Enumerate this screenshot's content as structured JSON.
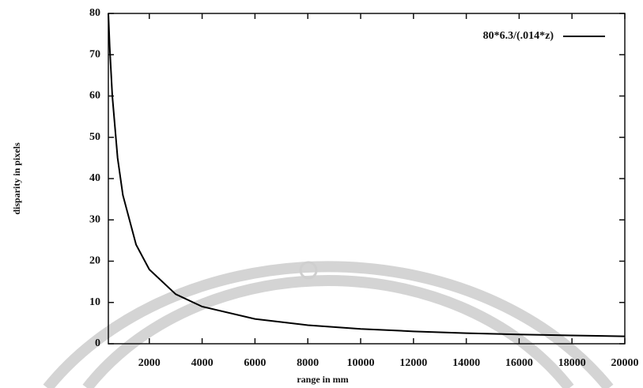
{
  "chart_data": {
    "type": "line",
    "x_label": "range in mm",
    "y_label": "disparity in pixels",
    "x": [
      450,
      500,
      600,
      800,
      1000,
      1500,
      2000,
      3000,
      4000,
      6000,
      8000,
      10000,
      12000,
      14000,
      16000,
      18000,
      20000
    ],
    "series": [
      {
        "name": "80*6.3/(.014*z)",
        "color": "#000000",
        "values": [
          80,
          72,
          60,
          45,
          36,
          24,
          18,
          12,
          9,
          6,
          4.5,
          3.6,
          3,
          2.57,
          2.25,
          2,
          1.8
        ]
      }
    ],
    "xlim": [
      450,
      20000
    ],
    "xticks": [
      2000,
      4000,
      6000,
      8000,
      10000,
      12000,
      14000,
      16000,
      18000,
      20000
    ],
    "ylim": [
      0,
      80
    ],
    "yticks": [
      0,
      10,
      20,
      30,
      40,
      50,
      60,
      70,
      80
    ]
  }
}
